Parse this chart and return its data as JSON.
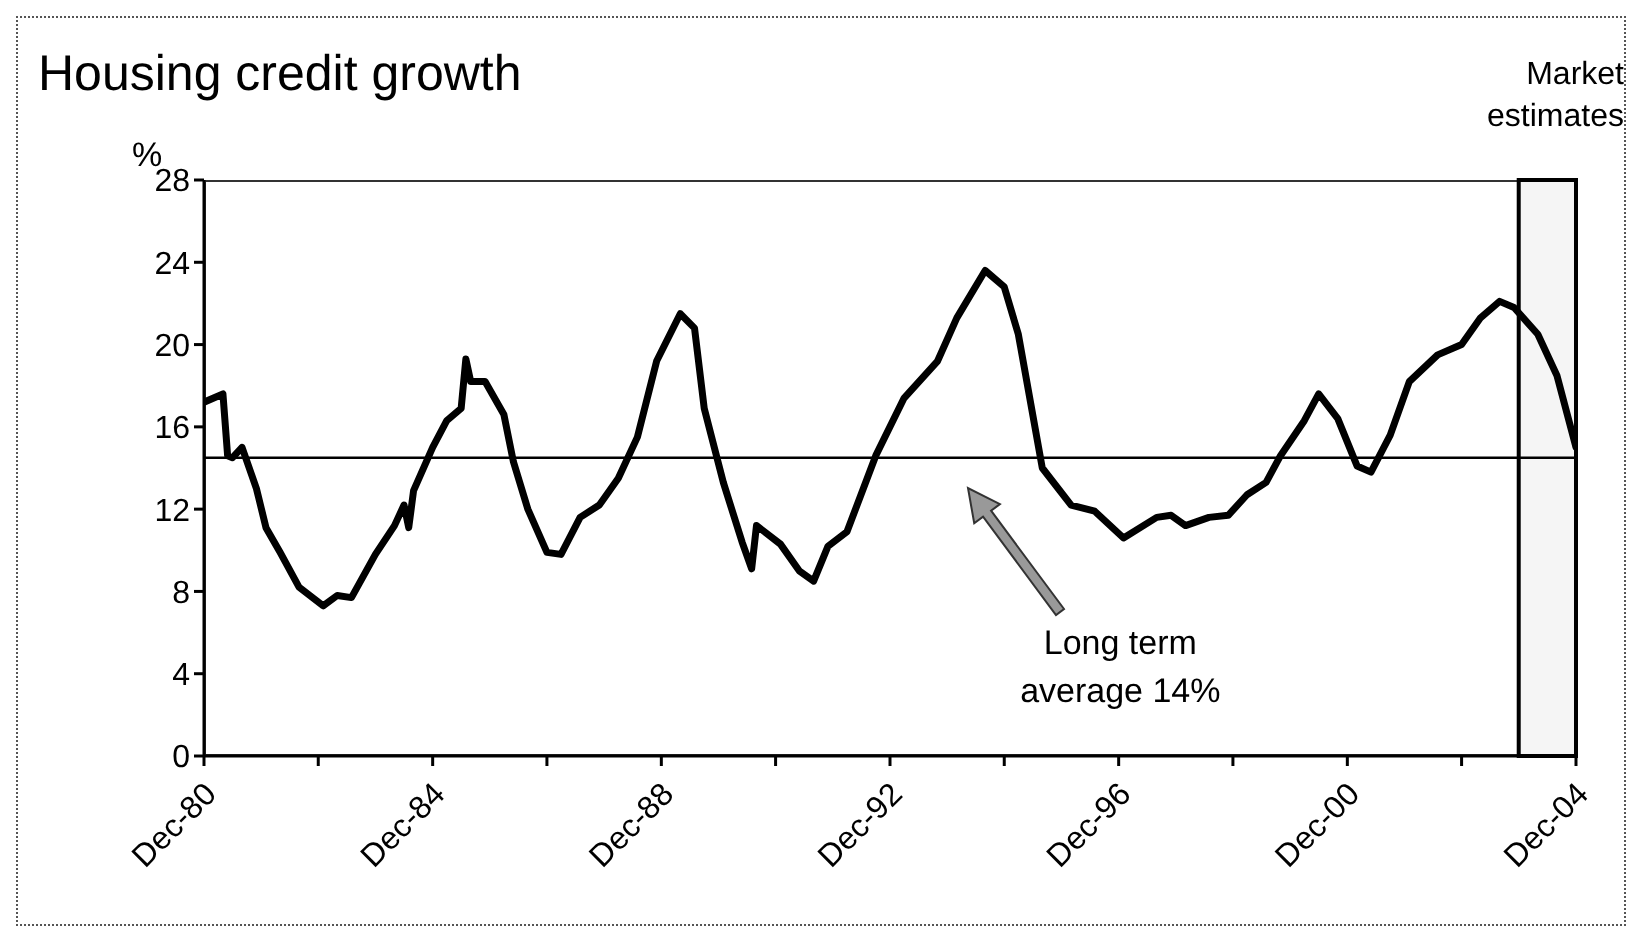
{
  "chart_data": {
    "type": "line",
    "title": "Housing credit growth",
    "ylabel": "%",
    "x": [
      "1980-12",
      "1981-04",
      "1981-05",
      "1981-06",
      "1981-08",
      "1981-11",
      "1982-01",
      "1982-04",
      "1982-08",
      "1983-01",
      "1983-04",
      "1983-07",
      "1983-12",
      "1984-04",
      "1984-06",
      "1984-07",
      "1984-08",
      "1984-12",
      "1985-03",
      "1985-06",
      "1985-07",
      "1985-08",
      "1985-11",
      "1986-03",
      "1986-05",
      "1986-08",
      "1986-12",
      "1987-03",
      "1987-07",
      "1987-11",
      "1988-03",
      "1988-07",
      "1988-11",
      "1989-04",
      "1989-07",
      "1989-09",
      "1990-01",
      "1990-05",
      "1990-07",
      "1990-08",
      "1991-01",
      "1991-05",
      "1991-08",
      "1991-11",
      "1992-03",
      "1992-09",
      "1993-03",
      "1993-10",
      "1994-02",
      "1994-08",
      "1994-12",
      "1995-03",
      "1995-08",
      "1996-02",
      "1996-07",
      "1997-01",
      "1997-08",
      "1997-11",
      "1998-02",
      "1998-07",
      "1998-11",
      "1999-03",
      "1999-07",
      "1999-10",
      "2000-03",
      "2000-06",
      "2000-10",
      "2001-02",
      "2001-05",
      "2001-09",
      "2002-01",
      "2002-07",
      "2002-12",
      "2003-04",
      "2003-08",
      "2003-11",
      "2004-04",
      "2004-08",
      "2004-12"
    ],
    "series": [
      {
        "color": "#000000",
        "values": [
          17.2,
          17.6,
          14.6,
          14.5,
          15.0,
          13.0,
          11.1,
          9.9,
          8.2,
          7.3,
          7.8,
          7.7,
          9.8,
          11.2,
          12.2,
          11.1,
          12.9,
          15.0,
          16.3,
          16.9,
          19.3,
          18.2,
          18.2,
          16.6,
          14.3,
          12.0,
          9.9,
          9.8,
          11.6,
          12.2,
          13.5,
          15.5,
          19.2,
          21.5,
          20.8,
          16.9,
          13.3,
          10.4,
          9.1,
          11.2,
          10.3,
          9.0,
          8.5,
          10.2,
          10.9,
          14.6,
          17.4,
          19.2,
          21.3,
          23.6,
          22.8,
          20.5,
          14.0,
          12.2,
          11.9,
          10.6,
          11.6,
          11.7,
          11.2,
          11.6,
          11.7,
          12.7,
          13.3,
          14.6,
          16.3,
          17.6,
          16.4,
          14.1,
          13.8,
          15.6,
          18.2,
          19.5,
          20.0,
          21.3,
          22.1,
          21.8,
          20.5,
          18.5,
          15.0
        ]
      }
    ],
    "xlim": [
      "1980-12",
      "2004-12"
    ],
    "xticks": [
      {
        "value": "1980-12",
        "label": "Dec-80"
      },
      {
        "value": "1982-12",
        "label": null
      },
      {
        "value": "1984-12",
        "label": "Dec-84"
      },
      {
        "value": "1986-12",
        "label": null
      },
      {
        "value": "1988-12",
        "label": "Dec-88"
      },
      {
        "value": "1990-12",
        "label": null
      },
      {
        "value": "1992-12",
        "label": "Dec-92"
      },
      {
        "value": "1994-12",
        "label": null
      },
      {
        "value": "1996-12",
        "label": "Dec-96"
      },
      {
        "value": "1998-12",
        "label": null
      },
      {
        "value": "2000-12",
        "label": "Dec-00"
      },
      {
        "value": "2002-12",
        "label": null
      },
      {
        "value": "2004-12",
        "label": "Dec-04"
      }
    ],
    "ylim": [
      0,
      28
    ],
    "yticks": [
      0,
      4,
      8,
      12,
      16,
      20,
      24,
      28
    ],
    "ref_lines": [
      {
        "axis": "y",
        "value": 14.5,
        "color": "#000000"
      }
    ],
    "annotations": [
      "Long term average 14%"
    ],
    "bands": [
      {
        "axis": "x",
        "from": "2003-12",
        "to": "2004-12",
        "label": "Market estimates",
        "color": "#000000"
      }
    ],
    "marker": "none",
    "line_style": "solid"
  }
}
